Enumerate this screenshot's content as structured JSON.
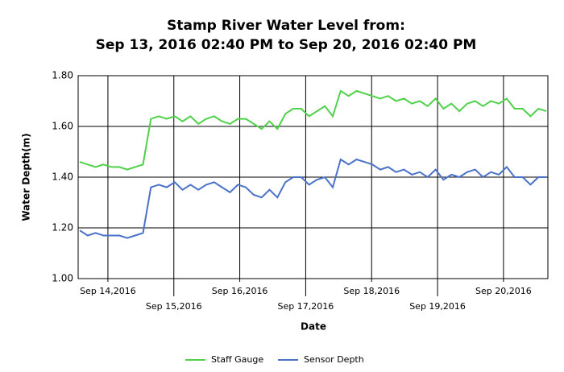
{
  "chart_data": {
    "type": "line",
    "title": [
      "Stamp River Water Level from:",
      "Sep 13, 2016 02:40 PM to Sep 20, 2016 02:40 PM"
    ],
    "x_label": "Date",
    "y_label": "Water Depth(m)",
    "xlim": [
      "2016-09-13T13:10",
      "2016-09-20T16:10"
    ],
    "xticks": [
      {
        "value": "2016-09-14",
        "label": "Sep 14,2016"
      },
      {
        "value": "2016-09-15",
        "label": "Sep 15,2016"
      },
      {
        "value": "2016-09-16",
        "label": "Sep 16,2016"
      },
      {
        "value": "2016-09-17",
        "label": "Sep 17,2016"
      },
      {
        "value": "2016-09-18",
        "label": "Sep 18,2016"
      },
      {
        "value": "2016-09-19",
        "label": "Sep 19,2016"
      },
      {
        "value": "2016-09-20",
        "label": "Sep 20,2016"
      }
    ],
    "ylim": [
      1.0,
      1.8
    ],
    "yticks": [
      {
        "value": 1.0,
        "label": "1.00"
      },
      {
        "value": 1.2,
        "label": "1.20"
      },
      {
        "value": 1.4,
        "label": "1.40"
      },
      {
        "value": 1.6,
        "label": "1.60"
      },
      {
        "value": 1.8,
        "label": "1.80"
      }
    ],
    "grid": true,
    "legend": "bottom",
    "series": [
      {
        "name": "Staff Gauge",
        "color": "#4fd14a",
        "values": [
          1.46,
          1.45,
          1.44,
          1.45,
          1.44,
          1.44,
          1.43,
          1.44,
          1.45,
          1.63,
          1.64,
          1.63,
          1.64,
          1.62,
          1.64,
          1.61,
          1.63,
          1.64,
          1.62,
          1.61,
          1.63,
          1.63,
          1.61,
          1.59,
          1.62,
          1.59,
          1.65,
          1.67,
          1.67,
          1.64,
          1.66,
          1.68,
          1.64,
          1.74,
          1.72,
          1.74,
          1.73,
          1.72,
          1.71,
          1.72,
          1.7,
          1.71,
          1.69,
          1.7,
          1.68,
          1.71,
          1.67,
          1.69,
          1.66,
          1.69,
          1.7,
          1.68,
          1.7,
          1.69,
          1.71,
          1.67,
          1.67,
          1.64,
          1.67,
          1.66
        ]
      },
      {
        "name": "Sensor Depth",
        "color": "#4a72c8",
        "values": [
          1.19,
          1.17,
          1.18,
          1.17,
          1.17,
          1.17,
          1.16,
          1.17,
          1.18,
          1.36,
          1.37,
          1.36,
          1.38,
          1.35,
          1.37,
          1.35,
          1.37,
          1.38,
          1.36,
          1.34,
          1.37,
          1.36,
          1.33,
          1.32,
          1.35,
          1.32,
          1.38,
          1.4,
          1.4,
          1.37,
          1.39,
          1.4,
          1.36,
          1.47,
          1.45,
          1.47,
          1.46,
          1.45,
          1.43,
          1.44,
          1.42,
          1.43,
          1.41,
          1.42,
          1.4,
          1.43,
          1.39,
          1.41,
          1.4,
          1.42,
          1.43,
          1.4,
          1.42,
          1.41,
          1.44,
          1.4,
          1.4,
          1.37,
          1.4,
          1.4
        ]
      }
    ]
  }
}
